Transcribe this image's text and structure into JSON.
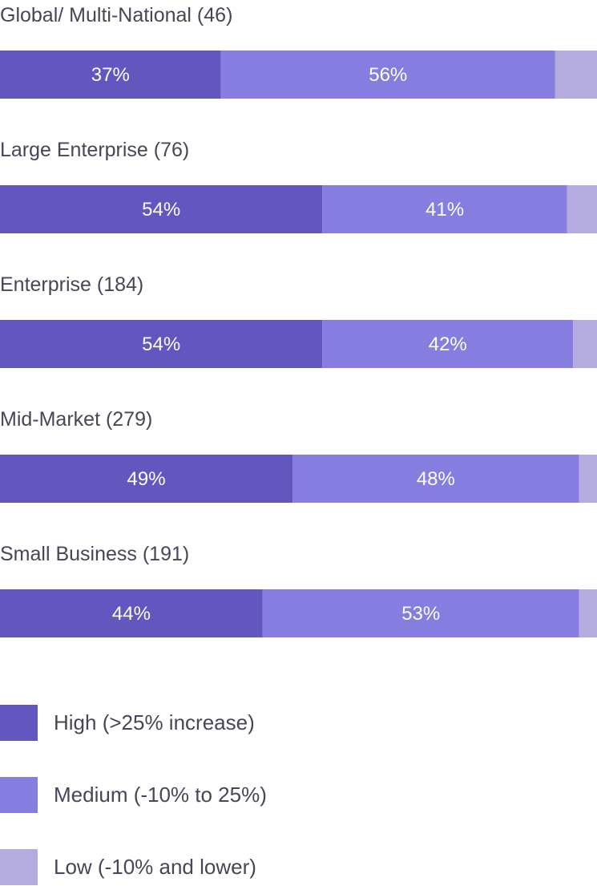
{
  "chart_data": {
    "type": "bar",
    "orientation": "horizontal",
    "stacked": true,
    "categories": [
      "Global/ Multi-National (46)",
      "Large Enterprise (76)",
      "Enterprise (184)",
      "Mid-Market (279)",
      "Small Business (191)"
    ],
    "series": [
      {
        "name": "High (>25% increase)",
        "color": "#6356be",
        "values": [
          37,
          54,
          54,
          49,
          44
        ]
      },
      {
        "name": "Medium (-10% to 25%)",
        "color": "#857ddf",
        "values": [
          56,
          41,
          42,
          48,
          53
        ]
      },
      {
        "name": "Low (-10% and lower)",
        "color": "#b4acdf",
        "values": [
          7,
          5,
          4,
          3,
          3
        ]
      }
    ],
    "value_labels": [
      [
        "37%",
        "56%",
        ""
      ],
      [
        "54%",
        "41%",
        ""
      ],
      [
        "54%",
        "42%",
        ""
      ],
      [
        "49%",
        "48%",
        ""
      ],
      [
        "44%",
        "53%",
        ""
      ]
    ],
    "xlim": [
      0,
      100
    ],
    "legend_position": "bottom-left",
    "grid": false
  }
}
